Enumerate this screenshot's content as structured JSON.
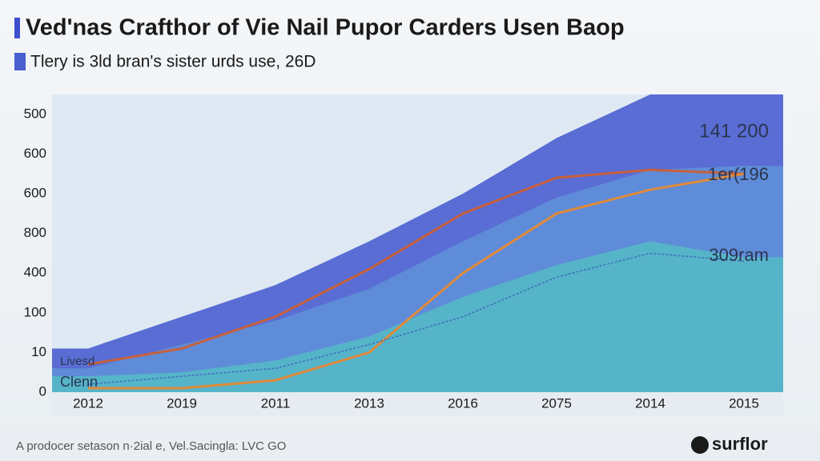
{
  "chart_data": {
    "type": "area",
    "title": "Ved'nas Crafthor of Vie Nail Pupor Carders Usen Baop",
    "subtitle": "Tlery is 3ld bran's sister urds use, 26D",
    "categories": [
      "2012",
      "2019",
      "2011",
      "2013",
      "2016",
      "2075",
      "2014",
      "2015"
    ],
    "y_categories": [
      "0",
      "10",
      "100",
      "400",
      "800",
      "600",
      "600",
      "500"
    ],
    "series": [
      {
        "color": "#4a5fd0",
        "values": [
          1.1,
          1.9,
          2.7,
          3.8,
          5.0,
          6.4,
          7.5,
          7.5
        ]
      },
      {
        "color": "#5f8fd8",
        "values": [
          0.6,
          1.2,
          1.8,
          2.6,
          3.8,
          4.9,
          5.6,
          5.7
        ]
      },
      {
        "color": "#55b8c8",
        "values": [
          0.4,
          0.5,
          0.8,
          1.4,
          2.4,
          3.2,
          3.8,
          3.4
        ]
      }
    ],
    "lines": [
      {
        "color": "#c8603a",
        "values": [
          0.7,
          1.1,
          1.9,
          3.1,
          4.5,
          5.4,
          5.6,
          5.5
        ]
      },
      {
        "color": "#e08a3a",
        "values": [
          0.1,
          0.1,
          0.3,
          1.0,
          3.0,
          4.5,
          5.1,
          5.5
        ]
      },
      {
        "color": "#3f6fb8",
        "values": [
          0.2,
          0.4,
          0.6,
          1.2,
          1.9,
          2.9,
          3.5,
          3.3
        ]
      }
    ],
    "annotations": [
      "141 200",
      "1er(196",
      "309ram",
      "Livesd",
      "Clenn"
    ],
    "footer": "A prodocer setason n·2ial e, Vel.Sacingla: LVC GO",
    "logo": "surflor"
  }
}
